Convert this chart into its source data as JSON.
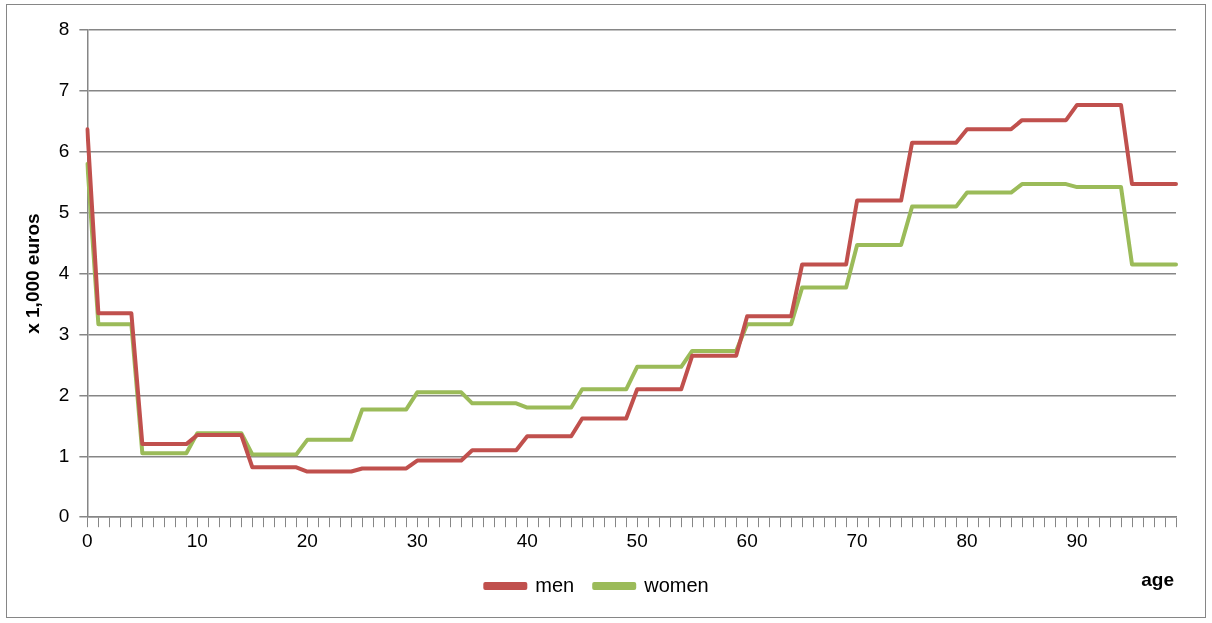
{
  "chart_data": {
    "type": "line",
    "ylabel": "x 1,000 euros",
    "xlabel": "age",
    "categories": [
      "0",
      null,
      null,
      null,
      null,
      null,
      null,
      null,
      null,
      null,
      "10",
      null,
      null,
      null,
      null,
      null,
      null,
      null,
      null,
      null,
      "20",
      null,
      null,
      null,
      null,
      null,
      null,
      null,
      null,
      null,
      "30",
      null,
      null,
      null,
      null,
      null,
      null,
      null,
      null,
      null,
      "40",
      null,
      null,
      null,
      null,
      null,
      null,
      null,
      null,
      null,
      "50",
      null,
      null,
      null,
      null,
      null,
      null,
      null,
      null,
      null,
      "60",
      null,
      null,
      null,
      null,
      null,
      null,
      null,
      null,
      null,
      "70",
      null,
      null,
      null,
      null,
      null,
      null,
      null,
      null,
      null,
      "80",
      null,
      null,
      null,
      null,
      null,
      null,
      null,
      null,
      null,
      "90",
      null,
      null,
      null,
      null,
      null,
      null,
      null,
      null,
      null
    ],
    "series": [
      {
        "name": "men",
        "color": "#c0504d",
        "values": [
          6.37,
          3.35,
          3.35,
          3.35,
          3.35,
          1.2,
          1.2,
          1.2,
          1.2,
          1.2,
          1.35,
          1.35,
          1.35,
          1.35,
          1.35,
          0.82,
          0.82,
          0.82,
          0.82,
          0.82,
          0.75,
          0.75,
          0.75,
          0.75,
          0.75,
          0.8,
          0.8,
          0.8,
          0.8,
          0.8,
          0.93,
          0.93,
          0.93,
          0.93,
          0.93,
          1.1,
          1.1,
          1.1,
          1.1,
          1.1,
          1.33,
          1.33,
          1.33,
          1.33,
          1.33,
          1.62,
          1.62,
          1.62,
          1.62,
          1.62,
          2.1,
          2.1,
          2.1,
          2.1,
          2.1,
          2.65,
          2.65,
          2.65,
          2.65,
          2.65,
          3.3,
          3.3,
          3.3,
          3.3,
          3.3,
          4.15,
          4.15,
          4.15,
          4.15,
          4.15,
          5.2,
          5.2,
          5.2,
          5.2,
          5.2,
          6.15,
          6.15,
          6.15,
          6.15,
          6.15,
          6.37,
          6.37,
          6.37,
          6.37,
          6.37,
          6.52,
          6.52,
          6.52,
          6.52,
          6.52,
          6.77,
          6.77,
          6.77,
          6.77,
          6.77,
          5.47,
          5.47,
          5.47,
          5.47,
          5.47
        ]
      },
      {
        "name": "women",
        "color": "#9bbb59",
        "values": [
          5.8,
          3.17,
          3.17,
          3.17,
          3.17,
          1.05,
          1.05,
          1.05,
          1.05,
          1.05,
          1.38,
          1.38,
          1.38,
          1.38,
          1.38,
          1.03,
          1.03,
          1.03,
          1.03,
          1.03,
          1.27,
          1.27,
          1.27,
          1.27,
          1.27,
          1.77,
          1.77,
          1.77,
          1.77,
          1.77,
          2.05,
          2.05,
          2.05,
          2.05,
          2.05,
          1.87,
          1.87,
          1.87,
          1.87,
          1.87,
          1.8,
          1.8,
          1.8,
          1.8,
          1.8,
          2.1,
          2.1,
          2.1,
          2.1,
          2.1,
          2.47,
          2.47,
          2.47,
          2.47,
          2.47,
          2.73,
          2.73,
          2.73,
          2.73,
          2.73,
          3.17,
          3.17,
          3.17,
          3.17,
          3.17,
          3.77,
          3.77,
          3.77,
          3.77,
          3.77,
          4.47,
          4.47,
          4.47,
          4.47,
          4.47,
          5.1,
          5.1,
          5.1,
          5.1,
          5.1,
          5.33,
          5.33,
          5.33,
          5.33,
          5.33,
          5.47,
          5.47,
          5.47,
          5.47,
          5.47,
          5.42,
          5.42,
          5.42,
          5.42,
          5.42,
          4.15,
          4.15,
          4.15,
          4.15,
          4.15
        ]
      }
    ],
    "ylim": [
      0,
      8
    ],
    "yticks": [
      0,
      1,
      2,
      3,
      4,
      5,
      6,
      7,
      8
    ],
    "grid": "y",
    "legend": "bottom",
    "marker": "none",
    "line_style": "solid"
  }
}
